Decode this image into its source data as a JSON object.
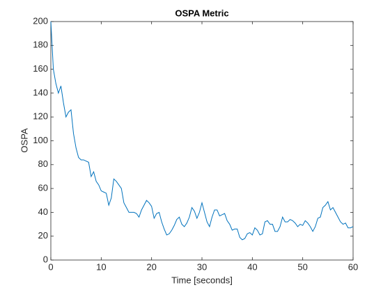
{
  "chart_data": {
    "type": "line",
    "title": "OSPA Metric",
    "xlabel": "Time [seconds]",
    "ylabel": "OSPA",
    "x": [
      0,
      0.5,
      1,
      1.5,
      2,
      2.5,
      3,
      3.5,
      4,
      4.5,
      5,
      5.5,
      6,
      6.5,
      7,
      7.5,
      8,
      8.5,
      9,
      9.5,
      10,
      10.5,
      11,
      11.5,
      12,
      12.5,
      13,
      13.5,
      14,
      14.5,
      15,
      15.5,
      16,
      16.5,
      17,
      17.5,
      18,
      18.5,
      19,
      19.5,
      20,
      20.5,
      21,
      21.5,
      22,
      22.5,
      23,
      23.5,
      24,
      24.5,
      25,
      25.5,
      26,
      26.5,
      27,
      27.5,
      28,
      28.5,
      29,
      29.5,
      30,
      30.5,
      31,
      31.5,
      32,
      32.5,
      33,
      33.5,
      34,
      34.5,
      35,
      35.5,
      36,
      36.5,
      37,
      37.5,
      38,
      38.5,
      39,
      39.5,
      40,
      40.5,
      41,
      41.5,
      42,
      42.5,
      43,
      43.5,
      44,
      44.5,
      45,
      45.5,
      46,
      46.5,
      47,
      47.5,
      48,
      48.5,
      49,
      49.5,
      50,
      50.5,
      51,
      51.5,
      52,
      52.5,
      53,
      53.5,
      54,
      54.5,
      55,
      55.5,
      56,
      56.5,
      57,
      57.5,
      58,
      58.5,
      59,
      59.5,
      60
    ],
    "series": [
      {
        "name": "OSPA",
        "color": "#0072bd",
        "values": [
          200,
          160,
          148,
          140,
          146,
          132,
          120,
          124,
          126,
          106,
          94,
          86,
          84,
          84,
          83,
          82,
          70,
          74,
          66,
          63,
          58,
          57,
          56,
          46,
          52,
          68,
          66,
          63,
          60,
          48,
          44,
          40,
          40,
          40,
          39,
          36,
          42,
          46,
          50,
          48,
          45,
          35,
          39,
          40,
          32,
          26,
          21,
          22,
          25,
          29,
          34,
          36,
          30,
          28,
          31,
          36,
          44,
          41,
          35,
          40,
          48,
          40,
          32,
          28,
          36,
          42,
          42,
          37,
          38,
          39,
          33,
          30,
          25,
          26,
          26,
          19,
          17,
          18,
          22,
          23,
          21,
          27,
          25,
          21,
          22,
          32,
          33,
          30,
          30,
          24,
          24,
          28,
          36,
          32,
          32,
          34,
          33,
          31,
          28,
          30,
          29,
          33,
          31,
          28,
          24,
          28,
          35,
          36,
          44,
          46,
          49,
          42,
          44,
          40,
          36,
          32,
          30,
          31,
          27,
          27,
          28
        ]
      }
    ],
    "xlim": [
      0,
      60
    ],
    "ylim": [
      0,
      200
    ],
    "xticks": [
      0,
      10,
      20,
      30,
      40,
      50,
      60
    ],
    "yticks": [
      0,
      20,
      40,
      60,
      80,
      100,
      120,
      140,
      160,
      180,
      200
    ]
  }
}
